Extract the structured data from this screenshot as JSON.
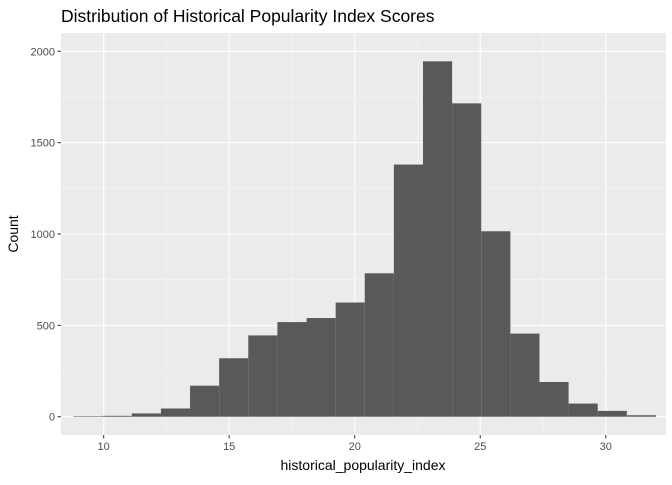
{
  "chart_data": {
    "type": "bar",
    "subtype": "histogram",
    "title": "Distribution of Historical Popularity Index Scores",
    "xlabel": "historical_popularity_index",
    "ylabel": "Count",
    "xlim": [
      8.3,
      32.4
    ],
    "ylim": [
      -100,
      2100
    ],
    "x_ticks": [
      10,
      15,
      20,
      25,
      30
    ],
    "y_ticks": [
      0,
      500,
      1000,
      1500,
      2000
    ],
    "grid": true,
    "legend": "none",
    "bin_width": 1.16,
    "bins": [
      {
        "x0": 8.8,
        "x1": 9.96,
        "count": 3
      },
      {
        "x0": 9.96,
        "x1": 11.12,
        "count": 5
      },
      {
        "x0": 11.12,
        "x1": 12.28,
        "count": 18
      },
      {
        "x0": 12.28,
        "x1": 13.44,
        "count": 45
      },
      {
        "x0": 13.44,
        "x1": 14.6,
        "count": 170
      },
      {
        "x0": 14.6,
        "x1": 15.76,
        "count": 320
      },
      {
        "x0": 15.76,
        "x1": 16.92,
        "count": 445
      },
      {
        "x0": 16.92,
        "x1": 18.08,
        "count": 518
      },
      {
        "x0": 18.08,
        "x1": 19.24,
        "count": 540
      },
      {
        "x0": 19.24,
        "x1": 20.4,
        "count": 625
      },
      {
        "x0": 20.4,
        "x1": 21.56,
        "count": 785
      },
      {
        "x0": 21.56,
        "x1": 22.72,
        "count": 1380
      },
      {
        "x0": 22.72,
        "x1": 23.88,
        "count": 1945
      },
      {
        "x0": 23.88,
        "x1": 25.04,
        "count": 1715
      },
      {
        "x0": 25.04,
        "x1": 26.2,
        "count": 1015
      },
      {
        "x0": 26.2,
        "x1": 27.36,
        "count": 455
      },
      {
        "x0": 27.36,
        "x1": 28.52,
        "count": 190
      },
      {
        "x0": 28.52,
        "x1": 29.68,
        "count": 72
      },
      {
        "x0": 29.68,
        "x1": 30.84,
        "count": 32
      },
      {
        "x0": 30.84,
        "x1": 32.0,
        "count": 8
      }
    ],
    "colors": {
      "bar": "#595959",
      "panel": "#ebebeb",
      "grid_major": "#ffffff",
      "grid_minor": "#f5f5f5",
      "tick_text": "#4d4d4d",
      "tick_mark": "#333333",
      "title_text": "#000000"
    }
  }
}
